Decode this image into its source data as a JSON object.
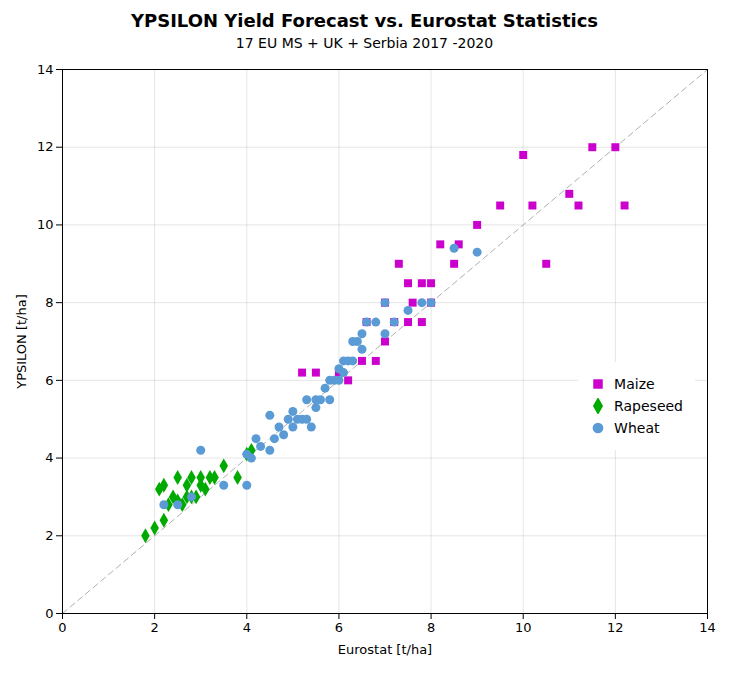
{
  "chart_data": {
    "type": "scatter",
    "title": "YPSILON Yield Forecast vs. Eurostat Statistics",
    "subtitle": "17 EU MS + UK + Serbia 2017 -2020",
    "xlabel": "Eurostat [t/ha]",
    "ylabel": "YPSILON [t/ha]",
    "xlim": [
      0,
      14
    ],
    "ylim": [
      0,
      14
    ],
    "xticks": [
      0,
      2,
      4,
      6,
      8,
      10,
      12,
      14
    ],
    "yticks": [
      0,
      2,
      4,
      6,
      8,
      10,
      12,
      14
    ],
    "grid": true,
    "legend": "right",
    "series": [
      {
        "type": "line",
        "color": "#b0b0b0",
        "line_style": "dashed",
        "x": [
          0,
          14
        ],
        "values": [
          0,
          14
        ]
      },
      {
        "name": "Maize",
        "color": "#cc00cc",
        "marker": "square",
        "x": [
          5.2,
          5.5,
          6.0,
          6.2,
          6.5,
          6.6,
          6.8,
          7.0,
          7.0,
          7.2,
          7.3,
          7.5,
          7.5,
          7.6,
          7.8,
          7.8,
          8.0,
          8.0,
          8.2,
          8.5,
          8.6,
          9.0,
          9.5,
          10.0,
          10.2,
          10.5,
          11.0,
          11.2,
          11.5,
          12.0,
          12.2
        ],
        "values": [
          6.2,
          6.2,
          6.2,
          6.0,
          6.5,
          7.5,
          6.5,
          7.0,
          8.0,
          7.5,
          9.0,
          7.5,
          8.5,
          8.0,
          8.5,
          7.5,
          8.5,
          8.0,
          9.5,
          9.0,
          9.5,
          10.0,
          10.5,
          11.8,
          10.5,
          9.0,
          10.8,
          10.5,
          12.0,
          12.0,
          10.5
        ]
      },
      {
        "name": "Rapeseed",
        "color": "#00aa00",
        "marker": "diamond",
        "x": [
          1.8,
          2.0,
          2.1,
          2.2,
          2.2,
          2.3,
          2.4,
          2.5,
          2.5,
          2.6,
          2.7,
          2.7,
          2.8,
          2.8,
          2.9,
          3.0,
          3.0,
          3.1,
          3.2,
          3.3,
          3.5,
          3.8,
          4.0,
          4.1
        ],
        "values": [
          2.0,
          2.2,
          3.2,
          2.4,
          3.3,
          2.8,
          3.0,
          2.9,
          3.5,
          2.8,
          3.0,
          3.3,
          3.0,
          3.5,
          3.0,
          3.3,
          3.5,
          3.2,
          3.5,
          3.5,
          3.8,
          3.5,
          4.1,
          4.2
        ]
      },
      {
        "name": "Wheat",
        "color": "#5b9bd5",
        "marker": "circle",
        "x": [
          2.2,
          2.5,
          2.8,
          3.0,
          3.5,
          4.0,
          4.0,
          4.1,
          4.2,
          4.3,
          4.5,
          4.5,
          4.6,
          4.7,
          4.8,
          4.9,
          5.0,
          5.0,
          5.1,
          5.2,
          5.3,
          5.3,
          5.4,
          5.5,
          5.5,
          5.6,
          5.7,
          5.8,
          5.8,
          5.9,
          6.0,
          6.0,
          6.1,
          6.1,
          6.2,
          6.3,
          6.3,
          6.4,
          6.5,
          6.5,
          6.6,
          6.8,
          7.0,
          7.0,
          7.2,
          7.5,
          7.8,
          8.0,
          8.5,
          9.0
        ],
        "values": [
          2.8,
          2.8,
          3.0,
          4.2,
          3.3,
          3.3,
          4.1,
          4.0,
          4.5,
          4.3,
          4.2,
          5.1,
          4.5,
          4.8,
          4.6,
          5.0,
          4.8,
          5.2,
          5.0,
          5.0,
          5.5,
          5.0,
          4.8,
          5.3,
          5.5,
          5.5,
          5.8,
          5.5,
          6.0,
          6.0,
          6.0,
          6.3,
          6.2,
          6.5,
          6.5,
          6.5,
          7.0,
          7.0,
          6.8,
          7.2,
          7.5,
          7.5,
          7.2,
          8.0,
          7.5,
          7.8,
          8.0,
          8.0,
          9.4,
          9.3
        ]
      }
    ]
  }
}
